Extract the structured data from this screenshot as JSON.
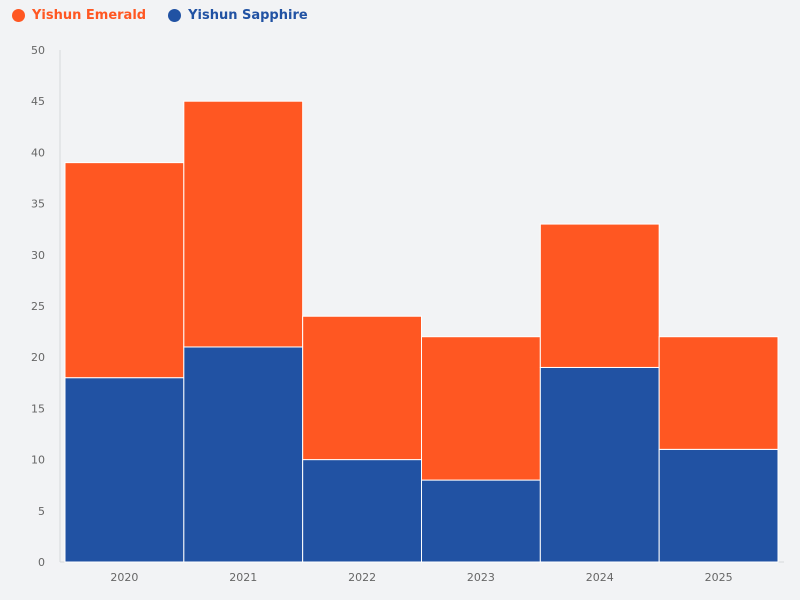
{
  "chart_data": {
    "type": "bar",
    "stacked": true,
    "categories": [
      "2020",
      "2021",
      "2022",
      "2023",
      "2024",
      "2025"
    ],
    "series": [
      {
        "name": "Yishun Sapphire",
        "color": "#2152a3",
        "values": [
          18,
          21,
          10,
          8,
          19,
          11
        ]
      },
      {
        "name": "Yishun Emerald",
        "color": "#ff5722",
        "values": [
          21,
          24,
          14,
          14,
          14,
          11
        ]
      }
    ],
    "ylim": [
      0,
      50
    ],
    "yticks": [
      0,
      5,
      10,
      15,
      20,
      25,
      30,
      35,
      40,
      45,
      50
    ],
    "grid": false,
    "legend_position": "top-left",
    "legend_order": [
      "Yishun Emerald",
      "Yishun Sapphire"
    ]
  }
}
